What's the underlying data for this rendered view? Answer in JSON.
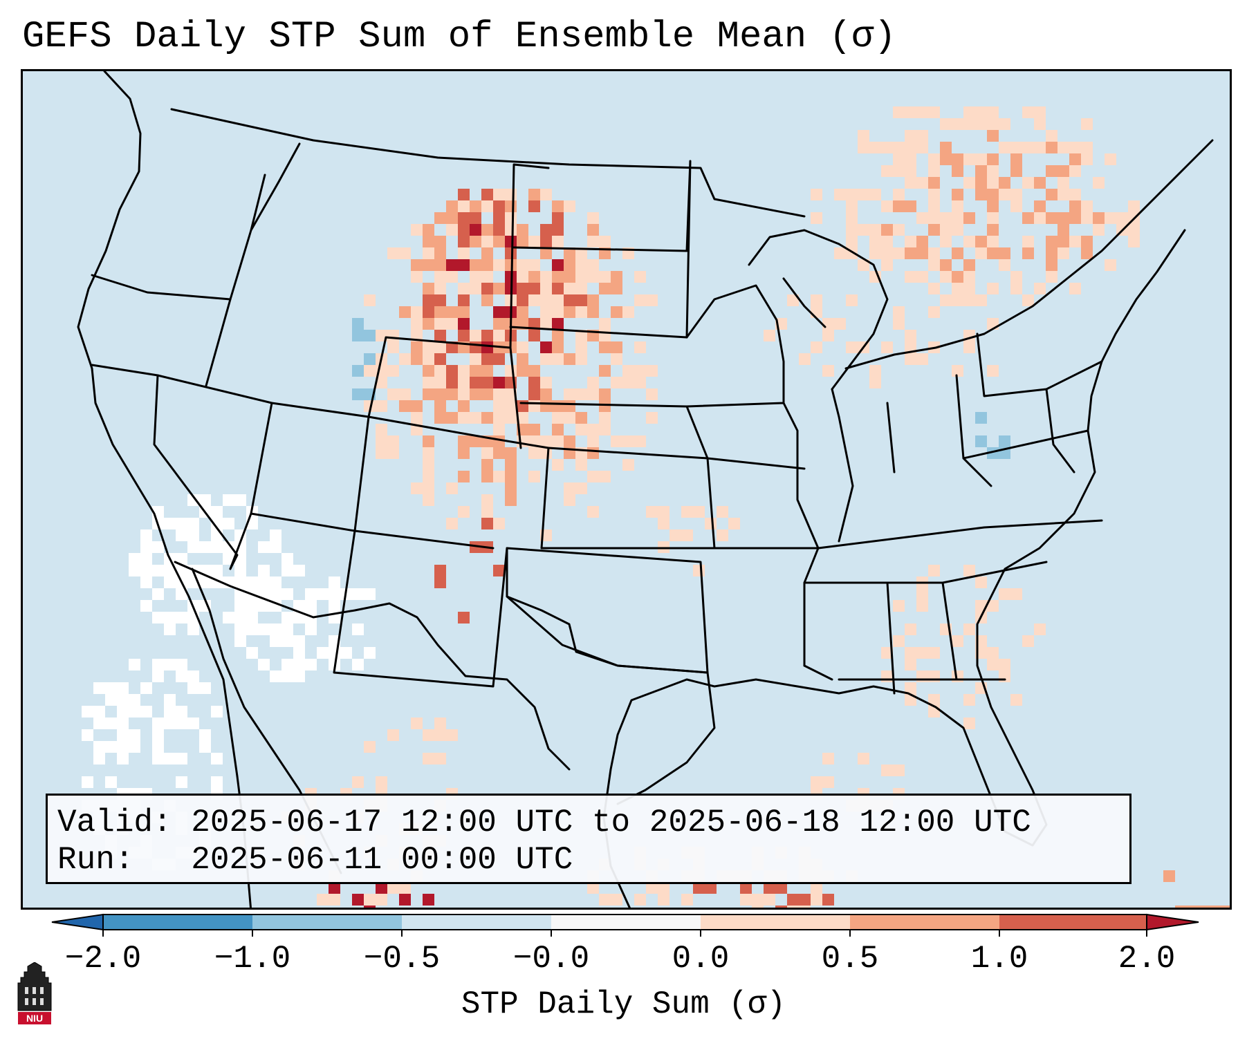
{
  "title": "GEFS Daily STP Sum of Ensemble Mean (σ)",
  "info": {
    "valid_line": "Valid: 2025-06-17 12:00 UTC to 2025-06-18 12:00 UTC",
    "run_line": "Run:   2025-06-11 00:00 UTC"
  },
  "colorbar": {
    "label": "STP Daily Sum (σ)",
    "ticks": [
      "−2.0",
      "−1.0",
      "−0.5",
      "−0.0",
      "0.0",
      "0.5",
      "1.0",
      "2.0"
    ],
    "colors": [
      "#4393c3",
      "#92c5de",
      "#d1e5f0",
      "#f7f7f7",
      "#fddbc7",
      "#f4a582",
      "#d6604d"
    ],
    "extend_low_color": "#2166ac",
    "extend_high_color": "#b2182b"
  },
  "logo": {
    "text": "NIU"
  },
  "map_colors": {
    "background": "#d1e5f0",
    "neutral": "#ffffff",
    "weak_positive": "#fddbc7",
    "moderate_positive": "#f4a582",
    "strong_positive": "#d6604d",
    "extreme_positive": "#b2182b",
    "weak_negative": "#92c5de",
    "boundaries": "#000000"
  }
}
